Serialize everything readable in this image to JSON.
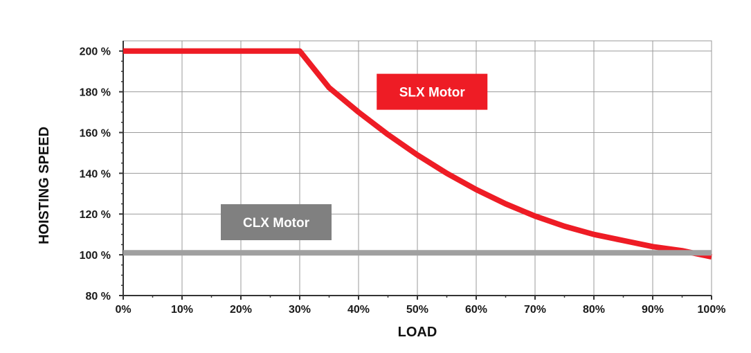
{
  "chart_data": {
    "type": "line",
    "xlabel": "LOAD",
    "ylabel": "HOISTING SPEED",
    "xlim": [
      0,
      100
    ],
    "ylim": [
      80,
      200
    ],
    "x_ticks": [
      0,
      10,
      20,
      30,
      40,
      50,
      60,
      70,
      80,
      90,
      100
    ],
    "x_tick_labels": [
      "0%",
      "10%",
      "20%",
      "30%",
      "40%",
      "50%",
      "60%",
      "70%",
      "80%",
      "90%",
      "100%"
    ],
    "y_ticks": [
      80,
      100,
      120,
      140,
      160,
      180,
      200
    ],
    "y_tick_labels": [
      "80 %",
      "100 %",
      "120 %",
      "140 %",
      "160 %",
      "180 %",
      "200 %"
    ],
    "grid": true,
    "series": [
      {
        "name": "SLX Motor",
        "color": "#ee1c25",
        "x": [
          0,
          30,
          35,
          40,
          45,
          50,
          55,
          60,
          65,
          70,
          75,
          80,
          85,
          90,
          95,
          100
        ],
        "y": [
          200,
          200,
          182,
          170,
          159,
          149,
          140,
          132,
          125,
          119,
          114,
          110,
          107,
          104,
          102,
          99
        ]
      },
      {
        "name": "CLX Motor",
        "color": "#a0a0a0",
        "x": [
          0,
          100
        ],
        "y": [
          101,
          101
        ]
      }
    ],
    "labels": [
      {
        "text": "SLX Motor",
        "series": 0,
        "color": "#ee1c25",
        "at_x": 52.5,
        "at_y": 180
      },
      {
        "text": "CLX Motor",
        "series": 1,
        "color": "#808080",
        "at_x": 26,
        "at_y": 116
      }
    ]
  }
}
